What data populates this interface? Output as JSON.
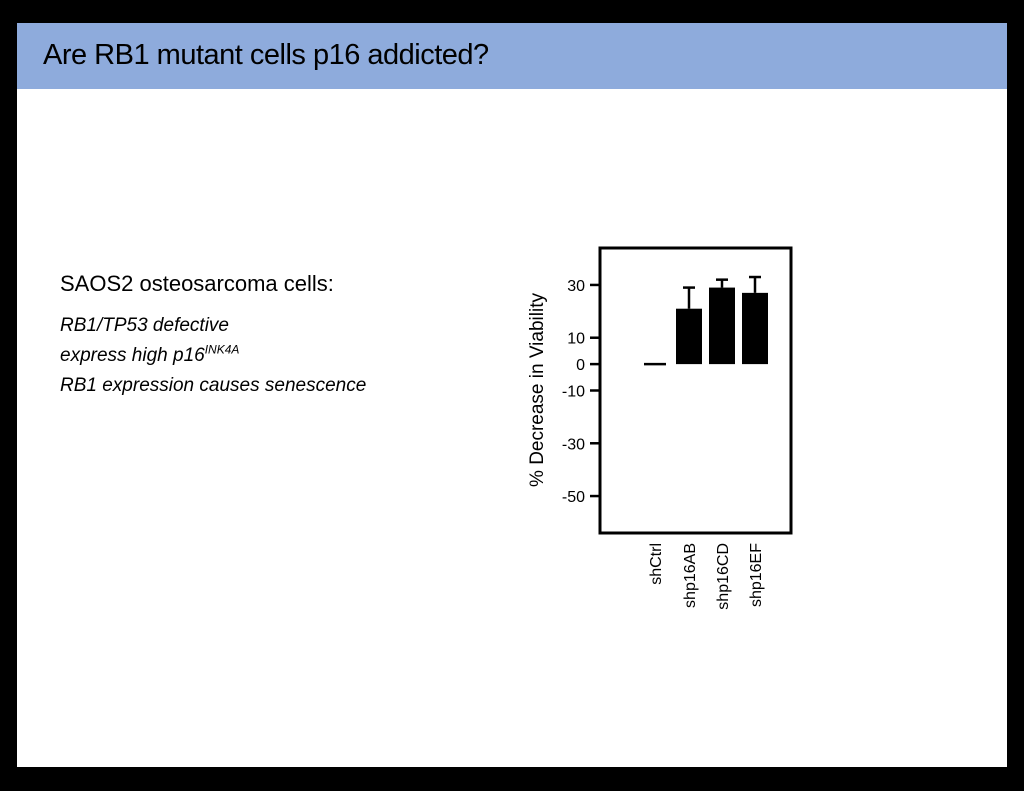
{
  "slide": {
    "title": "Are RB1 mutant cells p16 addicted?",
    "subheading": "SAOS2 osteosarcoma cells:",
    "lines": [
      "RB1/TP53 defective",
      "express high p16",
      "RB1 expression causes senescence"
    ],
    "superscript": "INK4A",
    "header_color": "#8eabdc"
  },
  "chart_data": {
    "type": "bar",
    "title": "",
    "xlabel": "",
    "ylabel": "% Decrease in Viability",
    "categories": [
      "shCtrl",
      "shp16AB",
      "shp16CD",
      "shp16EF"
    ],
    "values": [
      0,
      21,
      29,
      27
    ],
    "error_upper": [
      0,
      29,
      32,
      33
    ],
    "yticks": [
      30,
      10,
      0,
      -10,
      -30,
      -50
    ],
    "ylim": [
      -64,
      44
    ],
    "grid": false,
    "bar_color": "#000000"
  }
}
